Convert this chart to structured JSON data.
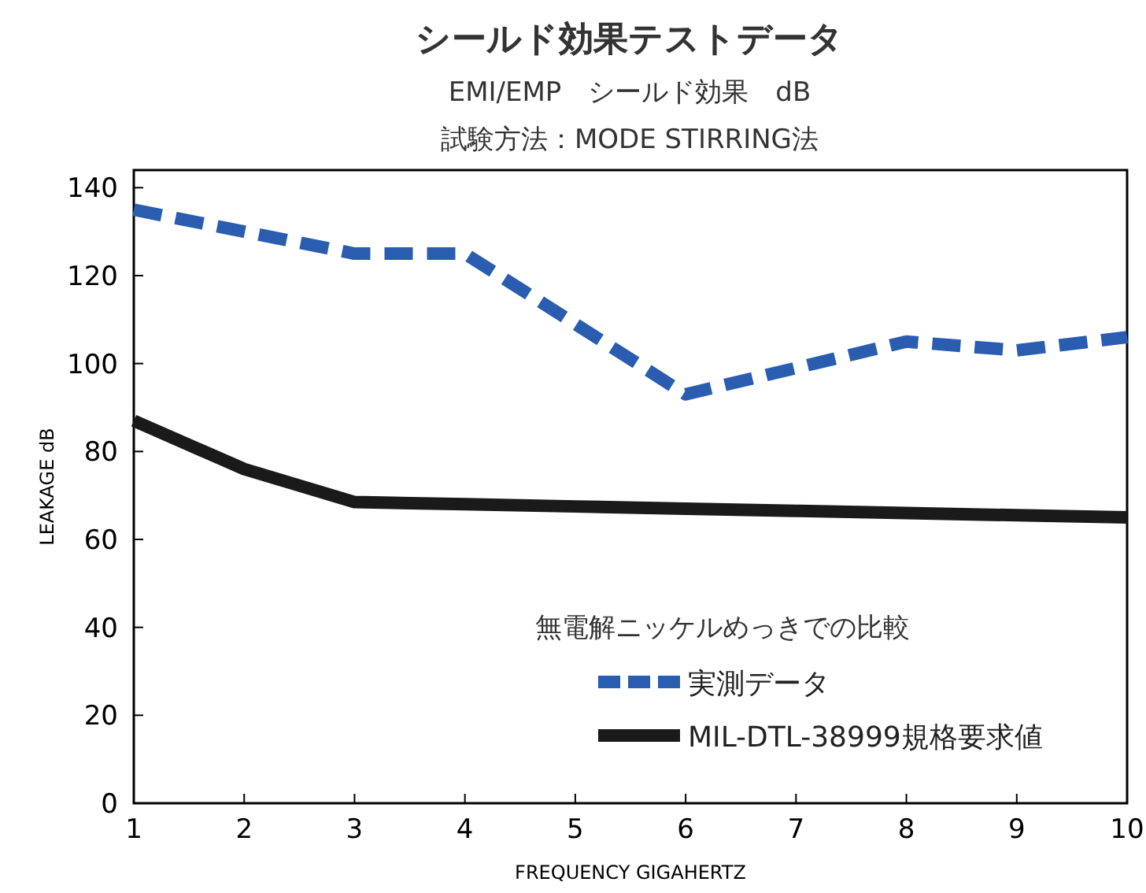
{
  "chart_data": {
    "type": "line",
    "title": "シールド効果テストデータ",
    "subtitle": "EMI/EMP　シールド効果　dB",
    "annotations": [
      "試験方法：MODE STIRRING法"
    ],
    "xlabel": "FREQUENCY GIGAHERTZ",
    "ylabel": "LEAKAGE dB",
    "x": [
      1,
      2,
      3,
      4,
      5,
      6,
      7,
      8,
      9,
      10
    ],
    "xlim": [
      1,
      10
    ],
    "xticks": [
      1,
      2,
      3,
      4,
      5,
      6,
      7,
      8,
      9,
      10
    ],
    "ylim": [
      0,
      144
    ],
    "yticks": [
      0,
      20,
      40,
      60,
      80,
      100,
      120,
      140
    ],
    "legend": "bottom right",
    "legend_title": "無電解ニッケルめっきでの比較",
    "series": [
      {
        "name": "実測データ",
        "color": "#2a5db0",
        "line_style": "dashed",
        "values": [
          135,
          130,
          125,
          125,
          109,
          93,
          99,
          105,
          103,
          106
        ]
      },
      {
        "name": "MIL-DTL-38999規格要求値",
        "color": "#1a1a1a",
        "line_style": "solid",
        "values": [
          87,
          76,
          68.5,
          68,
          67.5,
          67,
          66.5,
          66,
          65.5,
          65
        ]
      }
    ]
  }
}
